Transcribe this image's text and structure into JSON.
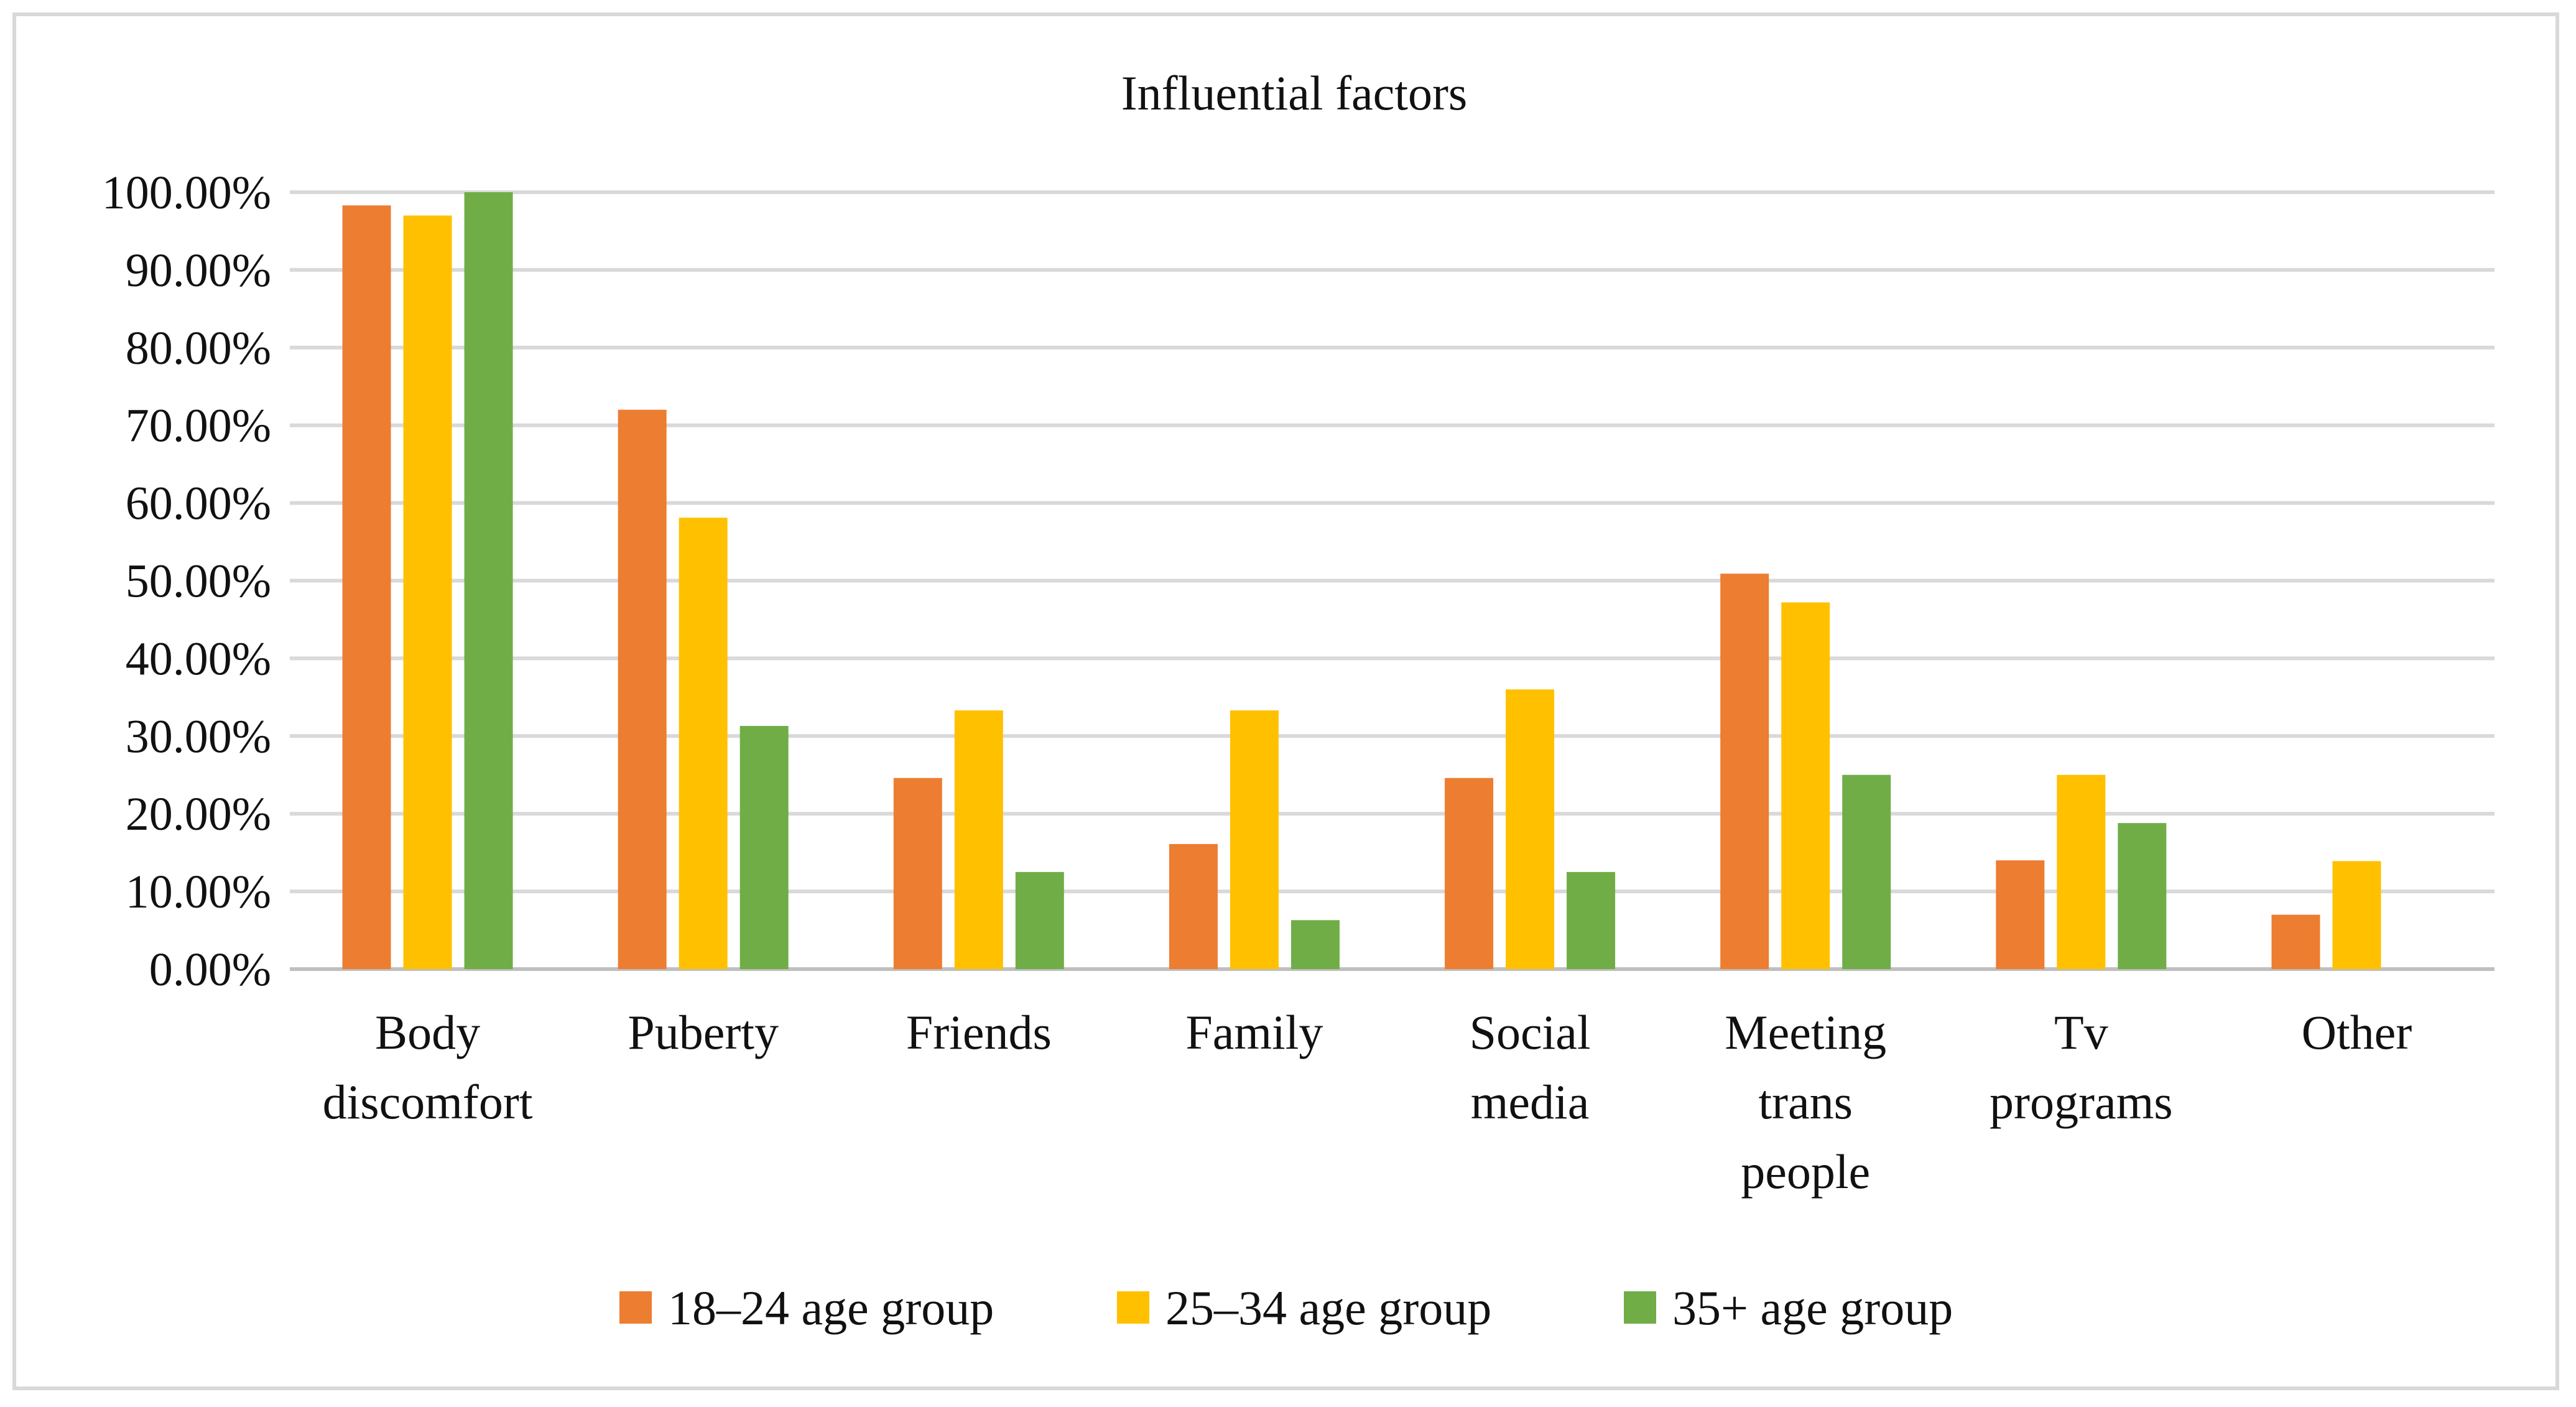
{
  "chart_data": {
    "type": "bar",
    "title": "Influential factors",
    "xlabel": "",
    "ylabel": "",
    "ylim": [
      0,
      100
    ],
    "ytick_step": 10,
    "ytick_labels": [
      "0.00%",
      "10.00%",
      "20.00%",
      "30.00%",
      "40.00%",
      "50.00%",
      "60.00%",
      "70.00%",
      "80.00%",
      "90.00%",
      "100.00%"
    ],
    "grid": true,
    "legend_position": "bottom",
    "categories": [
      [
        "Body",
        "discomfort"
      ],
      [
        "Puberty"
      ],
      [
        "Friends"
      ],
      [
        "Family"
      ],
      [
        "Social",
        "media"
      ],
      [
        "Meeting",
        "trans",
        "people"
      ],
      [
        "Tv",
        "programs"
      ],
      [
        "Other"
      ]
    ],
    "series": [
      {
        "name": "18–24 age group",
        "color": "#ED7D31",
        "values": [
          98.3,
          72.0,
          24.6,
          16.1,
          24.6,
          50.9,
          14.0,
          7.0
        ]
      },
      {
        "name": "25–34 age group",
        "color": "#FFC000",
        "values": [
          97.0,
          58.1,
          33.3,
          33.3,
          36.0,
          47.2,
          25.0,
          13.9
        ]
      },
      {
        "name": "35+ age group",
        "color": "#70AD47",
        "values": [
          100.0,
          31.3,
          12.5,
          6.3,
          12.5,
          25.0,
          18.8,
          0
        ]
      }
    ],
    "gridline_color": "#D9D9D9",
    "axis_color": "#BFBFBF"
  }
}
